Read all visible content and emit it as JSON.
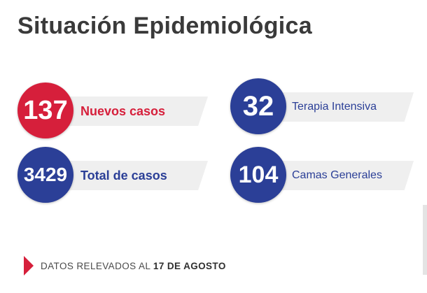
{
  "title": "Situación Epidemiológica",
  "stats": [
    {
      "value": "137",
      "label": "Nuevos casos",
      "color": "#d61f3b"
    },
    {
      "value": "32",
      "label": "Terapia Intensiva",
      "color": "#2b3f97"
    },
    {
      "value": "3429",
      "label": "Total de casos",
      "color": "#2b3f97"
    },
    {
      "value": "104",
      "label": "Camas Generales",
      "color": "#2b3f97"
    }
  ],
  "footer": {
    "prefix": "DATOS RELEVADOS AL ",
    "date": "17 DE AGOSTO"
  }
}
